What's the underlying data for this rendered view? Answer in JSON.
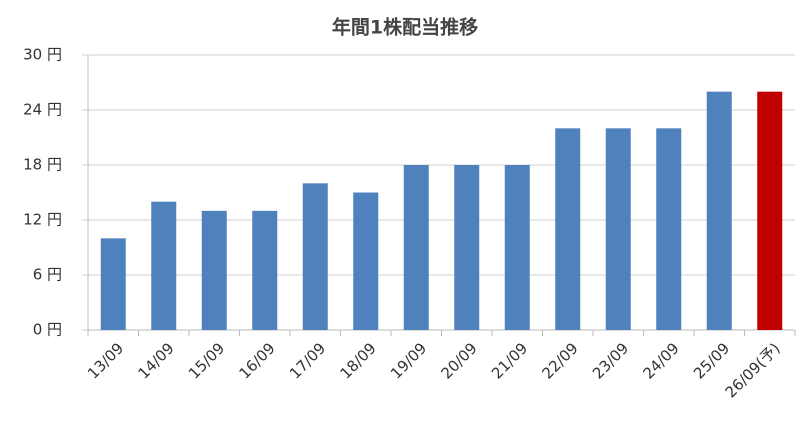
{
  "chart_data": {
    "type": "bar",
    "title": "年間1株配当推移",
    "categories": [
      "13/09",
      "14/09",
      "15/09",
      "16/09",
      "17/09",
      "18/09",
      "19/09",
      "20/09",
      "21/09",
      "22/09",
      "23/09",
      "24/09",
      "25/09",
      "26/09(予)"
    ],
    "values": [
      10,
      14,
      13,
      13,
      16,
      15,
      18,
      18,
      18,
      22,
      22,
      22,
      26,
      26
    ],
    "colors": [
      "#4f81bd",
      "#4f81bd",
      "#4f81bd",
      "#4f81bd",
      "#4f81bd",
      "#4f81bd",
      "#4f81bd",
      "#4f81bd",
      "#4f81bd",
      "#4f81bd",
      "#4f81bd",
      "#4f81bd",
      "#4f81bd",
      "#c00000"
    ],
    "ylim": [
      0,
      30
    ],
    "yticks": [
      {
        "value": 0,
        "label": "0 円"
      },
      {
        "value": 6,
        "label": "6 円"
      },
      {
        "value": 12,
        "label": "12 円"
      },
      {
        "value": 18,
        "label": "18 円"
      },
      {
        "value": 24,
        "label": "24 円"
      },
      {
        "value": 30,
        "label": "30 円"
      }
    ],
    "grid": true
  }
}
